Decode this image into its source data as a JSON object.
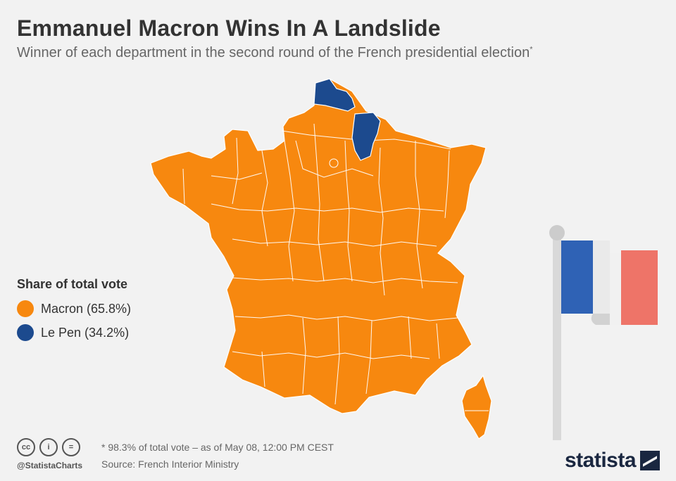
{
  "header": {
    "title": "Emmanuel Macron Wins In A Landslide",
    "subtitle": "Winner of each department in the second round of the French presidential election",
    "subtitle_mark": "*"
  },
  "legend": {
    "title": "Share of total vote",
    "items": [
      {
        "label": "Macron (65.8%)",
        "color": "#f7880f"
      },
      {
        "label": "Le Pen (34.2%)",
        "color": "#1c4a8e"
      }
    ]
  },
  "map": {
    "region": "Metropolitan France",
    "winner_colors": {
      "Macron": "#f7880f",
      "Le Pen": "#1c4a8e"
    },
    "le_pen_departments": [
      "Pas-de-Calais",
      "Aisne"
    ]
  },
  "footer": {
    "icons": [
      "cc-icon",
      "attribution-icon",
      "no-derivatives-icon"
    ],
    "icon_glyphs": [
      "cc",
      "i",
      "="
    ],
    "handle": "@StatistaCharts",
    "note": "* 98.3% of total vote – as of May 08, 12:00 PM CEST",
    "source": "Source: French Interior Ministry",
    "brand": "statista"
  }
}
